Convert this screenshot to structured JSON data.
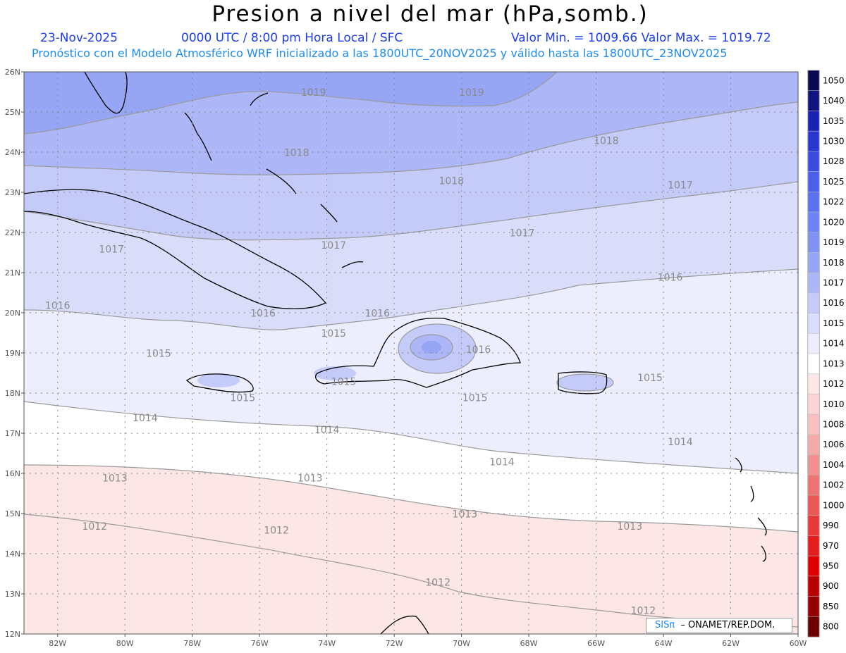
{
  "title": "Presion a nivel del mar (hPa,somb.)",
  "header": {
    "date": "23-Nov-2025",
    "time": "0000 UTC / 8:00 pm Hora Local / SFC",
    "min_max": "Valor Min. = 1009.66  Valor Max. = 1019.72",
    "model_info": "Pronóstico con el Modelo Atmosférico WRF inicializado a las 1800UTC_20NOV2025 y válido hasta las  1800UTC_23NOV2025"
  },
  "lat_labels": [
    "26N",
    "25N",
    "24N",
    "23N",
    "22N",
    "21N",
    "20N",
    "19N",
    "18N",
    "17N",
    "16N",
    "15N",
    "14N",
    "13N",
    "12N"
  ],
  "lon_labels": [
    "82W",
    "80W",
    "78W",
    "76W",
    "74W",
    "72W",
    "70W",
    "68W",
    "66W",
    "64W",
    "62W",
    "60W"
  ],
  "contour_labels": [
    {
      "text": "1019",
      "lon": -74.4,
      "lat": 25.4
    },
    {
      "text": "1019",
      "lon": -69.7,
      "lat": 25.4
    },
    {
      "text": "1018",
      "lon": -74.9,
      "lat": 23.9
    },
    {
      "text": "1018",
      "lon": -70.3,
      "lat": 23.2
    },
    {
      "text": "1018",
      "lon": -65.7,
      "lat": 24.2
    },
    {
      "text": "1017",
      "lon": -63.5,
      "lat": 23.1
    },
    {
      "text": "1017",
      "lon": -68.2,
      "lat": 21.9
    },
    {
      "text": "1017",
      "lon": -73.8,
      "lat": 21.6
    },
    {
      "text": "1017",
      "lon": -80.4,
      "lat": 21.5
    },
    {
      "text": "1016",
      "lon": -82.0,
      "lat": 20.1
    },
    {
      "text": "1016",
      "lon": -75.9,
      "lat": 19.9
    },
    {
      "text": "1016",
      "lon": -72.5,
      "lat": 19.9
    },
    {
      "text": "1016",
      "lon": -63.8,
      "lat": 20.8
    },
    {
      "text": "1016",
      "lon": -69.5,
      "lat": 19.0
    },
    {
      "text": "1015",
      "lon": -73.8,
      "lat": 19.4
    },
    {
      "text": "1015",
      "lon": -79.0,
      "lat": 18.9
    },
    {
      "text": "1015",
      "lon": -76.5,
      "lat": 17.8
    },
    {
      "text": "1015",
      "lon": -69.6,
      "lat": 17.8
    },
    {
      "text": "1015",
      "lon": -64.4,
      "lat": 18.3
    },
    {
      "text": "1015",
      "lon": -73.5,
      "lat": 18.2
    },
    {
      "text": "1014",
      "lon": -79.4,
      "lat": 17.3
    },
    {
      "text": "1014",
      "lon": -74.0,
      "lat": 17.0
    },
    {
      "text": "1014",
      "lon": -68.8,
      "lat": 16.2
    },
    {
      "text": "1014",
      "lon": -63.5,
      "lat": 16.7
    },
    {
      "text": "1013",
      "lon": -80.3,
      "lat": 15.8
    },
    {
      "text": "1013",
      "lon": -74.5,
      "lat": 15.8
    },
    {
      "text": "1013",
      "lon": -69.9,
      "lat": 14.9
    },
    {
      "text": "1013",
      "lon": -65.0,
      "lat": 14.6
    },
    {
      "text": "1012",
      "lon": -80.9,
      "lat": 14.6
    },
    {
      "text": "1012",
      "lon": -75.5,
      "lat": 14.5
    },
    {
      "text": "1012",
      "lon": -70.7,
      "lat": 13.2
    },
    {
      "text": "1012",
      "lon": -64.6,
      "lat": 12.5
    }
  ],
  "colorbar": {
    "labels": [
      "1050",
      "1040",
      "1035",
      "1030",
      "1028",
      "1025",
      "1022",
      "1020",
      "1019",
      "1018",
      "1017",
      "1016",
      "1015",
      "1014",
      "1013",
      "1012",
      "1010",
      "1008",
      "1006",
      "1004",
      "1002",
      "1000",
      "990",
      "970",
      "950",
      "900",
      "850",
      "800"
    ],
    "colors": [
      "#0a0a50",
      "#12147e",
      "#1a22b4",
      "#2836d2",
      "#3a4ce0",
      "#4a60ea",
      "#5a72f0",
      "#6d84f4",
      "#8093f5",
      "#97a5f5",
      "#adb7f7",
      "#c4cbf8",
      "#d9ddfa",
      "#eceefd",
      "#ffffff",
      "#fde6e6",
      "#fbd4d4",
      "#f8c0c0",
      "#f5aaaa",
      "#f29090",
      "#ee7474",
      "#ea5858",
      "#e83a3a",
      "#e51c1c",
      "#de0000",
      "#b80000",
      "#920000",
      "#6a0000"
    ]
  },
  "credit": {
    "logo": "SISπ",
    "org": "– ONAMET/REP.DOM."
  }
}
